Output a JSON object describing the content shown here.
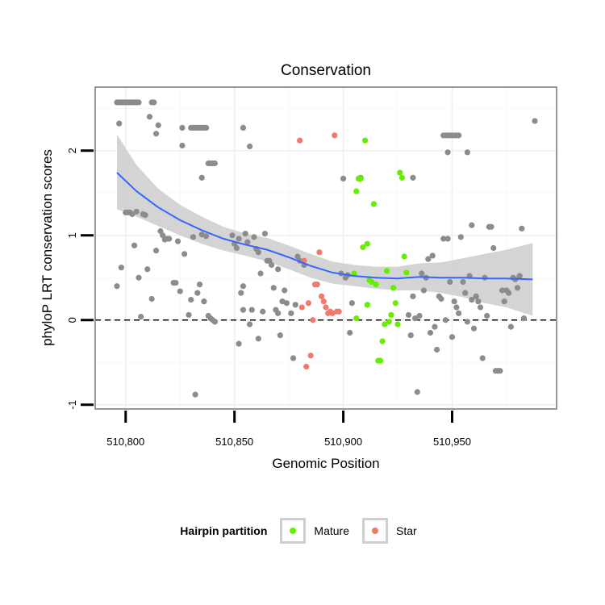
{
  "chart_data": {
    "type": "scatter",
    "title": "Conservation",
    "xlabel": "Genomic Position",
    "ylabel": "phyloP LRT conservation scores",
    "xlim": [
      510786,
      510998
    ],
    "ylim": [
      -1.05,
      2.75
    ],
    "x_ticks": [
      510800,
      510850,
      510900,
      510950
    ],
    "x_tick_labels": [
      "510,800",
      "510,850",
      "510,900",
      "510,950"
    ],
    "y_ticks": [
      -1,
      0,
      1,
      2
    ],
    "y_tick_labels": [
      "-1",
      "0",
      "1",
      "2"
    ],
    "reference_line": {
      "y": 0,
      "style": "dashed"
    },
    "grid": true,
    "legend": {
      "title": "Hairpin partition",
      "position": "bottom",
      "entries": [
        {
          "name": "Mature",
          "color": "#66ee00"
        },
        {
          "name": "Star",
          "color": "#f07a6e"
        }
      ]
    },
    "colors": {
      "other": "#8c8c8c",
      "Mature": "#66ee00",
      "Star": "#f07a6e",
      "smooth": "#3366ff",
      "ribbon": "#cccccc"
    },
    "smooth": {
      "x": [
        510796,
        510805,
        510815,
        510825,
        510835,
        510845,
        510855,
        510865,
        510875,
        510885,
        510895,
        510905,
        510915,
        510925,
        510935,
        510945,
        510955,
        510965,
        510975,
        510987
      ],
      "y": [
        1.74,
        1.52,
        1.33,
        1.18,
        1.06,
        0.96,
        0.89,
        0.83,
        0.74,
        0.64,
        0.56,
        0.52,
        0.5,
        0.49,
        0.51,
        0.5,
        0.5,
        0.49,
        0.49,
        0.48
      ],
      "lower": [
        1.31,
        1.22,
        1.11,
        1.0,
        0.9,
        0.82,
        0.76,
        0.69,
        0.6,
        0.5,
        0.43,
        0.4,
        0.37,
        0.35,
        0.35,
        0.32,
        0.27,
        0.2,
        0.15,
        0.05
      ],
      "upper": [
        2.19,
        1.83,
        1.55,
        1.36,
        1.22,
        1.1,
        1.02,
        0.97,
        0.88,
        0.78,
        0.69,
        0.65,
        0.63,
        0.63,
        0.67,
        0.68,
        0.73,
        0.78,
        0.83,
        0.91
      ]
    },
    "series": [
      {
        "name": "Mature",
        "color": "#66ee00",
        "points": [
          [
            510905,
            0.55
          ],
          [
            510906,
            1.52
          ],
          [
            510907,
            1.67
          ],
          [
            510908,
            1.67
          ],
          [
            510909,
            0.86
          ],
          [
            510910,
            2.12
          ],
          [
            510911,
            0.9
          ],
          [
            510912,
            0.47
          ],
          [
            510913,
            0.45
          ],
          [
            510914,
            1.37
          ],
          [
            510915,
            0.42
          ],
          [
            510916,
            -0.48
          ],
          [
            510917,
            -0.48
          ],
          [
            510918,
            -0.25
          ],
          [
            510919,
            -0.05
          ],
          [
            510920,
            0.58
          ],
          [
            510921,
            -0.02
          ],
          [
            510922,
            0.06
          ],
          [
            510923,
            0.38
          ],
          [
            510924,
            0.2
          ],
          [
            510925,
            -0.05
          ],
          [
            510926,
            1.74
          ],
          [
            510927,
            1.68
          ],
          [
            510928,
            0.75
          ],
          [
            510929,
            0.56
          ],
          [
            510911,
            0.18
          ],
          [
            510906,
            0.02
          ]
        ]
      },
      {
        "name": "Star",
        "color": "#f07a6e",
        "points": [
          [
            510880,
            2.12
          ],
          [
            510881,
            0.15
          ],
          [
            510883,
            -0.55
          ],
          [
            510884,
            0.2
          ],
          [
            510885,
            -0.42
          ],
          [
            510886,
            0.0
          ],
          [
            510887,
            0.42
          ],
          [
            510888,
            0.42
          ],
          [
            510889,
            0.8
          ],
          [
            510890,
            0.28
          ],
          [
            510891,
            0.22
          ],
          [
            510892,
            0.15
          ],
          [
            510893,
            0.08
          ],
          [
            510894,
            0.1
          ],
          [
            510895,
            0.08
          ],
          [
            510896,
            2.18
          ],
          [
            510897,
            0.1
          ],
          [
            510898,
            0.1
          ],
          [
            510882,
            0.7
          ]
        ]
      }
    ],
    "other_points": [
      [
        510796,
        2.57
      ],
      [
        510797,
        2.57
      ],
      [
        510798,
        2.57
      ],
      [
        510799,
        2.57
      ],
      [
        510800,
        2.57
      ],
      [
        510801,
        2.57
      ],
      [
        510802,
        2.57
      ],
      [
        510803,
        2.57
      ],
      [
        510804,
        2.57
      ],
      [
        510805,
        2.57
      ],
      [
        510806,
        2.57
      ],
      [
        510812,
        2.57
      ],
      [
        510813,
        2.57
      ],
      [
        510811,
        2.4
      ],
      [
        510815,
        2.3
      ],
      [
        510814,
        2.2
      ],
      [
        510797,
        2.32
      ],
      [
        510826,
        2.27
      ],
      [
        510830,
        2.27
      ],
      [
        510831,
        2.27
      ],
      [
        510832,
        2.27
      ],
      [
        510833,
        2.27
      ],
      [
        510834,
        2.27
      ],
      [
        510835,
        2.27
      ],
      [
        510836,
        2.27
      ],
      [
        510837,
        2.27
      ],
      [
        510854,
        2.27
      ],
      [
        510826,
        2.06
      ],
      [
        510857,
        2.05
      ],
      [
        510838,
        1.85
      ],
      [
        510839,
        1.85
      ],
      [
        510840,
        1.85
      ],
      [
        510841,
        1.85
      ],
      [
        510835,
        1.68
      ],
      [
        510908,
        1.68
      ],
      [
        510932,
        1.68
      ],
      [
        510946,
        2.18
      ],
      [
        510947,
        2.18
      ],
      [
        510948,
        2.18
      ],
      [
        510949,
        2.18
      ],
      [
        510950,
        2.18
      ],
      [
        510951,
        2.18
      ],
      [
        510952,
        2.18
      ],
      [
        510953,
        2.18
      ],
      [
        510948,
        1.98
      ],
      [
        510957,
        1.98
      ],
      [
        510988,
        2.35
      ],
      [
        510796,
        0.4
      ],
      [
        510798,
        0.62
      ],
      [
        510800,
        1.27
      ],
      [
        510801,
        1.27
      ],
      [
        510802,
        1.27
      ],
      [
        510803,
        1.25
      ],
      [
        510804,
        0.88
      ],
      [
        510805,
        1.28
      ],
      [
        510806,
        0.5
      ],
      [
        510807,
        0.04
      ],
      [
        510808,
        1.25
      ],
      [
        510809,
        1.24
      ],
      [
        510810,
        0.6
      ],
      [
        510812,
        0.25
      ],
      [
        510814,
        0.82
      ],
      [
        510816,
        1.05
      ],
      [
        510817,
        1.0
      ],
      [
        510818,
        0.95
      ],
      [
        510819,
        0.96
      ],
      [
        510820,
        0.96
      ],
      [
        510822,
        0.44
      ],
      [
        510823,
        0.44
      ],
      [
        510824,
        0.93
      ],
      [
        510825,
        0.34
      ],
      [
        510827,
        0.78
      ],
      [
        510829,
        0.06
      ],
      [
        510830,
        0.24
      ],
      [
        510831,
        0.98
      ],
      [
        510832,
        -0.88
      ],
      [
        510833,
        0.32
      ],
      [
        510834,
        0.42
      ],
      [
        510835,
        1.01
      ],
      [
        510836,
        0.22
      ],
      [
        510837,
        0.99
      ],
      [
        510838,
        0.05
      ],
      [
        510839,
        0.02
      ],
      [
        510840,
        0.0
      ],
      [
        510841,
        -0.02
      ],
      [
        510849,
        1.0
      ],
      [
        510850,
        0.9
      ],
      [
        510851,
        0.85
      ],
      [
        510852,
        0.96
      ],
      [
        510853,
        0.32
      ],
      [
        510854,
        0.12
      ],
      [
        510855,
        1.02
      ],
      [
        510856,
        0.92
      ],
      [
        510857,
        -0.05
      ],
      [
        510858,
        0.12
      ],
      [
        510859,
        0.98
      ],
      [
        510860,
        0.84
      ],
      [
        510861,
        0.8
      ],
      [
        510862,
        0.55
      ],
      [
        510863,
        0.1
      ],
      [
        510864,
        1.02
      ],
      [
        510865,
        0.7
      ],
      [
        510866,
        0.7
      ],
      [
        510867,
        0.65
      ],
      [
        510868,
        0.38
      ],
      [
        510869,
        0.12
      ],
      [
        510870,
        0.6
      ],
      [
        510872,
        0.22
      ],
      [
        510873,
        0.35
      ],
      [
        510874,
        0.2
      ],
      [
        510876,
        0.08
      ],
      [
        510877,
        -0.45
      ],
      [
        510878,
        0.18
      ],
      [
        510879,
        0.75
      ],
      [
        510880,
        0.7
      ],
      [
        510882,
        0.65
      ],
      [
        510852,
        -0.28
      ],
      [
        510861,
        -0.22
      ],
      [
        510854,
        0.4
      ],
      [
        510870,
        0.08
      ],
      [
        510871,
        -0.18
      ],
      [
        510900,
        1.67
      ],
      [
        510901,
        0.5
      ],
      [
        510902,
        0.53
      ],
      [
        510903,
        -0.15
      ],
      [
        510904,
        0.2
      ],
      [
        510930,
        0.06
      ],
      [
        510931,
        -0.18
      ],
      [
        510932,
        0.28
      ],
      [
        510933,
        0.02
      ],
      [
        510934,
        -0.85
      ],
      [
        510935,
        0.05
      ],
      [
        510936,
        0.55
      ],
      [
        510937,
        0.35
      ],
      [
        510938,
        0.5
      ],
      [
        510939,
        0.72
      ],
      [
        510940,
        -0.15
      ],
      [
        510941,
        0.76
      ],
      [
        510942,
        -0.08
      ],
      [
        510943,
        -0.35
      ],
      [
        510944,
        0.28
      ],
      [
        510945,
        0.25
      ],
      [
        510946,
        0.96
      ],
      [
        510947,
        0.0
      ],
      [
        510948,
        0.96
      ],
      [
        510949,
        0.45
      ],
      [
        510950,
        -0.2
      ],
      [
        510951,
        0.22
      ],
      [
        510952,
        0.15
      ],
      [
        510953,
        0.08
      ],
      [
        510954,
        0.98
      ],
      [
        510955,
        0.45
      ],
      [
        510956,
        0.32
      ],
      [
        510957,
        -0.02
      ],
      [
        510958,
        0.52
      ],
      [
        510959,
        0.24
      ],
      [
        510960,
        -0.1
      ],
      [
        510961,
        0.28
      ],
      [
        510962,
        0.22
      ],
      [
        510963,
        0.15
      ],
      [
        510964,
        -0.45
      ],
      [
        510965,
        0.5
      ],
      [
        510966,
        0.05
      ],
      [
        510967,
        1.1
      ],
      [
        510968,
        1.1
      ],
      [
        510969,
        0.85
      ],
      [
        510970,
        -0.6
      ],
      [
        510971,
        -0.6
      ],
      [
        510972,
        -0.6
      ],
      [
        510973,
        0.35
      ],
      [
        510974,
        0.22
      ],
      [
        510975,
        0.35
      ],
      [
        510976,
        0.32
      ],
      [
        510977,
        -0.08
      ],
      [
        510978,
        0.5
      ],
      [
        510979,
        0.48
      ],
      [
        510980,
        0.38
      ],
      [
        510981,
        0.52
      ],
      [
        510982,
        1.08
      ],
      [
        510983,
        0.02
      ],
      [
        510899,
        0.55
      ],
      [
        510959,
        1.12
      ],
      [
        510981,
        0.52
      ]
    ]
  }
}
